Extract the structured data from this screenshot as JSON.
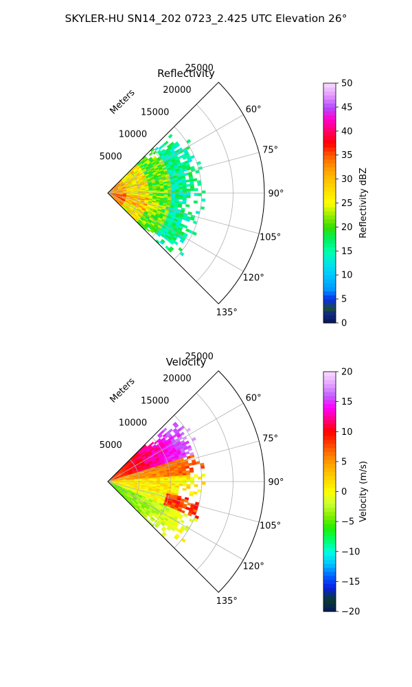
{
  "title": "SKYLER-HU  SN14_202  0723_2.425 UTC Elevation 26°",
  "chart_data": [
    {
      "type": "heatmap",
      "projection": "polar-sector",
      "title": "Reflectivity",
      "radial_label": "Meters",
      "radial_ticks": [
        5000,
        10000,
        15000,
        20000,
        25000
      ],
      "radial_tick_labels": [
        "5000",
        "10000",
        "15000",
        "20000",
        "25000"
      ],
      "r_max": 25000,
      "angle_ticks": [
        60,
        75,
        90,
        105,
        120,
        135
      ],
      "angle_tick_labels": [
        "60°",
        "75°",
        "90°",
        "105°",
        "120°",
        "135°"
      ],
      "angle_range_deg": [
        45,
        135
      ],
      "grid": true,
      "data_extent_m": 15500,
      "colorbar": {
        "label": "Reflectivity dBZ",
        "range": [
          0,
          50
        ],
        "ticks": [
          0,
          5,
          10,
          15,
          20,
          25,
          30,
          35,
          40,
          45,
          50
        ],
        "tick_labels": [
          "0",
          "5",
          "10",
          "15",
          "20",
          "25",
          "30",
          "35",
          "40",
          "45",
          "50"
        ],
        "colormap": "pyart_NWSRef"
      }
    },
    {
      "type": "heatmap",
      "projection": "polar-sector",
      "title": "Velocity",
      "radial_label": "Meters",
      "radial_ticks": [
        5000,
        10000,
        15000,
        20000,
        25000
      ],
      "radial_tick_labels": [
        "5000",
        "10000",
        "15000",
        "20000",
        "25000"
      ],
      "r_max": 25000,
      "angle_ticks": [
        60,
        75,
        90,
        105,
        120,
        135
      ],
      "angle_tick_labels": [
        "60°",
        "75°",
        "90°",
        "105°",
        "120°",
        "135°"
      ],
      "angle_range_deg": [
        45,
        135
      ],
      "grid": true,
      "data_extent_m": 15500,
      "colorbar": {
        "label": "Velocity (m/s)",
        "range": [
          -20,
          20
        ],
        "ticks": [
          -20,
          -15,
          -10,
          -5,
          0,
          5,
          10,
          15,
          20
        ],
        "tick_labels": [
          "−20",
          "−15",
          "−10",
          "−5",
          "0",
          "5",
          "10",
          "15",
          "20"
        ],
        "colormap": "pyart_BuDRd18"
      }
    }
  ]
}
